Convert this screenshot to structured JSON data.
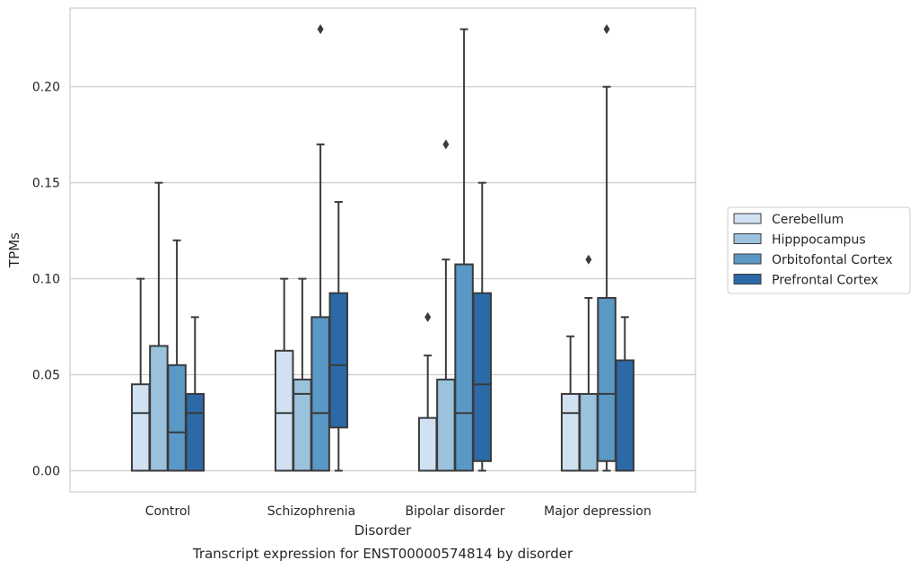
{
  "chart_data": {
    "type": "box",
    "title": "Transcript expression for ENST00000574814 by disorder",
    "xlabel": "Disorder",
    "ylabel": "TPMs",
    "ylim": [
      -0.011,
      0.241
    ],
    "yticks": [
      "0.00",
      "0.05",
      "0.10",
      "0.15",
      "0.20"
    ],
    "yticks_values": [
      0,
      0.05,
      0.1,
      0.15,
      0.2
    ],
    "grid": true,
    "legend_position": "right",
    "categories": [
      "Control",
      "Schizophrenia",
      "Bipolar disorder",
      "Major depression"
    ],
    "series": [
      {
        "name": "Cerebellum",
        "color": "#d0e1f2",
        "boxes": [
          {
            "whislo": 0,
            "q1": 0,
            "med": 0.03,
            "q3": 0.045,
            "whishi": 0.1,
            "fliers": []
          },
          {
            "whislo": 0,
            "q1": 0,
            "med": 0.03,
            "q3": 0.0625,
            "whishi": 0.1,
            "fliers": []
          },
          {
            "whislo": 0,
            "q1": 0,
            "med": 0,
            "q3": 0.0275,
            "whishi": 0.06,
            "fliers": [
              0.08
            ]
          },
          {
            "whislo": 0,
            "q1": 0,
            "med": 0.03,
            "q3": 0.04,
            "whishi": 0.07,
            "fliers": []
          }
        ]
      },
      {
        "name": "Hipppocampus",
        "color": "#9ac2dc",
        "boxes": [
          {
            "whislo": 0,
            "q1": 0,
            "med": 0,
            "q3": 0.065,
            "whishi": 0.15,
            "fliers": []
          },
          {
            "whislo": 0,
            "q1": 0,
            "med": 0.04,
            "q3": 0.0475,
            "whishi": 0.1,
            "fliers": []
          },
          {
            "whislo": 0,
            "q1": 0,
            "med": 0,
            "q3": 0.0475,
            "whishi": 0.11,
            "fliers": [
              0.17
            ]
          },
          {
            "whislo": 0,
            "q1": 0,
            "med": 0,
            "q3": 0.04,
            "whishi": 0.09,
            "fliers": [
              0.11
            ]
          }
        ]
      },
      {
        "name": "Orbitofontal Cortex",
        "color": "#5a98c6",
        "boxes": [
          {
            "whislo": 0,
            "q1": 0,
            "med": 0.02,
            "q3": 0.055,
            "whishi": 0.12,
            "fliers": []
          },
          {
            "whislo": 0,
            "q1": 0,
            "med": 0.03,
            "q3": 0.08,
            "whishi": 0.17,
            "fliers": [
              0.23
            ]
          },
          {
            "whislo": 0,
            "q1": 0,
            "med": 0.03,
            "q3": 0.1075,
            "whishi": 0.23,
            "fliers": []
          },
          {
            "whislo": 0,
            "q1": 0.005,
            "med": 0.04,
            "q3": 0.09,
            "whishi": 0.2,
            "fliers": [
              0.23
            ]
          }
        ]
      },
      {
        "name": "Prefrontal Cortex",
        "color": "#2b69a7",
        "boxes": [
          {
            "whislo": 0,
            "q1": 0,
            "med": 0.03,
            "q3": 0.04,
            "whishi": 0.08,
            "fliers": []
          },
          {
            "whislo": 0,
            "q1": 0.0225,
            "med": 0.055,
            "q3": 0.0925,
            "whishi": 0.14,
            "fliers": []
          },
          {
            "whislo": 0,
            "q1": 0.005,
            "med": 0.045,
            "q3": 0.0925,
            "whishi": 0.15,
            "fliers": []
          },
          {
            "whislo": 0,
            "q1": 0,
            "med": 0,
            "q3": 0.0575,
            "whishi": 0.08,
            "fliers": []
          }
        ]
      }
    ]
  }
}
